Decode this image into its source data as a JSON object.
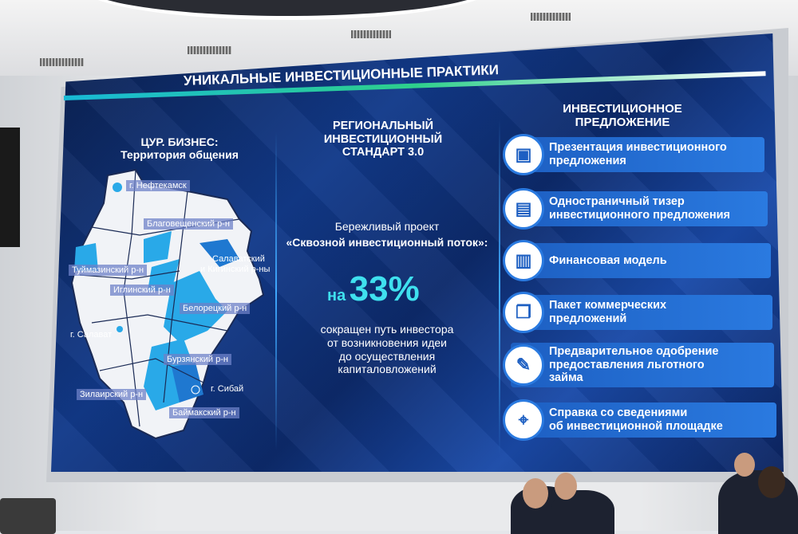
{
  "slide": {
    "title": "УНИКАЛЬНЫЕ ИНВЕСТИЦИОННЫЕ ПРАКТИКИ",
    "left": {
      "heading1": "ЦУР. БИЗНЕС:",
      "heading2": "Территория общения",
      "labels": [
        "г. Нефтекамск",
        "Благовещенский р-н",
        "Салаватский",
        "и Кигинский р-ны",
        "Туймазинский р-н",
        "Иглинский р-н",
        "Белорецкий р-н",
        "г. Салават",
        "Бурзянский р-н",
        "г. Сибай",
        "Зилаирский р-н",
        "Баймакский р-н"
      ]
    },
    "middle": {
      "heading": [
        "РЕГИОНАЛЬНЫЙ",
        "ИНВЕСТИЦИОННЫЙ",
        "СТАНДАРТ 3.0"
      ],
      "project1": "Бережливый проект",
      "project2": "«Сквозной инвестиционный поток»:",
      "prefix": "на",
      "percent": "33%",
      "desc": [
        "сокращен путь инвестора",
        "от возникновения идеи",
        "до осуществления",
        "капиталовложений"
      ]
    },
    "right": {
      "heading": [
        "ИНВЕСТИЦИОННОЕ",
        "ПРЕДЛОЖЕНИЕ"
      ],
      "items": [
        {
          "l1": "Презентация инвестиционного",
          "l2": "предложения",
          "icon": "presentation-icon"
        },
        {
          "l1": "Одностраничный тизер",
          "l2": "инвестиционного предложения",
          "icon": "document-icon"
        },
        {
          "l1": "Финансовая модель",
          "l2": "",
          "icon": "chart-document-icon"
        },
        {
          "l1": "Пакет коммерческих",
          "l2": "предложений",
          "icon": "documents-stack-icon"
        },
        {
          "l1": "Предварительное одобрение",
          "l2": "предоставления льготного",
          "l3": "займа",
          "icon": "approval-document-icon"
        },
        {
          "l1": "Справка со сведениями",
          "l2": "об инвестиционной площадке",
          "icon": "location-pin-icon"
        }
      ]
    }
  },
  "colors": {
    "accent": "#3fe0ee",
    "item_bg": "#2a7ae0",
    "screen_bg": "#123a8a"
  }
}
